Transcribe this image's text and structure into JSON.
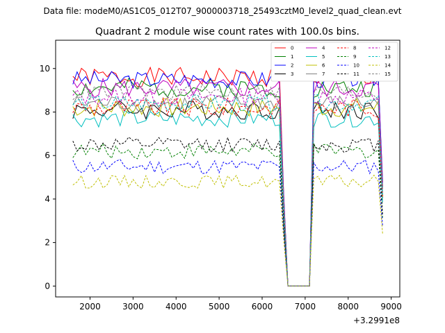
{
  "chart_data": {
    "type": "line",
    "suptitle": "Data file: modeM0/AS1C05_012T07_9000003718_25493cztM0_level2_quad_clean.evt",
    "title": "Quadrant 2 module wise count rates with 100.0s bins.",
    "xlabel": "",
    "ylabel": "",
    "x_offset_label": "+3.2991e8",
    "xlim": [
      1200,
      9200
    ],
    "ylim": [
      -0.5,
      11.3
    ],
    "xticks": [
      2000,
      3000,
      4000,
      5000,
      6000,
      7000,
      8000,
      9000
    ],
    "yticks": [
      0,
      2,
      4,
      6,
      8,
      10
    ],
    "grid": false,
    "legend_position": "top-right",
    "x_range": [
      1600,
      8850
    ],
    "gap": {
      "from": 6500,
      "to": 7150,
      "value": 0
    },
    "series": [
      {
        "name": "0",
        "color": "#ff0000",
        "dash": "solid",
        "level": 9.6,
        "amp": 0.45,
        "seed": 1
      },
      {
        "name": "1",
        "color": "#008000",
        "dash": "solid",
        "level": 9.1,
        "amp": 0.45,
        "seed": 2
      },
      {
        "name": "2",
        "color": "#0000ff",
        "dash": "solid",
        "level": 9.5,
        "amp": 0.4,
        "seed": 3
      },
      {
        "name": "3",
        "color": "#000000",
        "dash": "solid",
        "level": 8.1,
        "amp": 0.45,
        "seed": 4
      },
      {
        "name": "4",
        "color": "#bf00bf",
        "dash": "solid",
        "level": 9.1,
        "amp": 0.45,
        "seed": 5
      },
      {
        "name": "5",
        "color": "#00bfbf",
        "dash": "solid",
        "level": 7.7,
        "amp": 0.4,
        "seed": 6
      },
      {
        "name": "6",
        "color": "#bfbf00",
        "dash": "solid",
        "level": 8.2,
        "amp": 0.45,
        "seed": 7
      },
      {
        "name": "7",
        "color": "#808080",
        "dash": "solid",
        "level": 8.4,
        "amp": 0.4,
        "seed": 8
      },
      {
        "name": "8",
        "color": "#ff0000",
        "dash": "dashed",
        "level": 8.2,
        "amp": 0.45,
        "seed": 9
      },
      {
        "name": "9",
        "color": "#008000",
        "dash": "dashed",
        "level": 6.2,
        "amp": 0.35,
        "seed": 10
      },
      {
        "name": "10",
        "color": "#0000ff",
        "dash": "dashed",
        "level": 5.5,
        "amp": 0.35,
        "seed": 11
      },
      {
        "name": "11",
        "color": "#000000",
        "dash": "dashed",
        "level": 6.5,
        "amp": 0.35,
        "seed": 12
      },
      {
        "name": "12",
        "color": "#bf00bf",
        "dash": "dashed",
        "level": 8.7,
        "amp": 0.4,
        "seed": 13
      },
      {
        "name": "13",
        "color": "#00bfbf",
        "dash": "dashed",
        "level": 8.4,
        "amp": 0.4,
        "seed": 14
      },
      {
        "name": "14",
        "color": "#bfbf00",
        "dash": "dashed",
        "level": 4.8,
        "amp": 0.3,
        "seed": 15
      },
      {
        "name": "15",
        "color": "#808080",
        "dash": "dashed",
        "level": 8.9,
        "amp": 0.4,
        "seed": 16
      }
    ]
  }
}
